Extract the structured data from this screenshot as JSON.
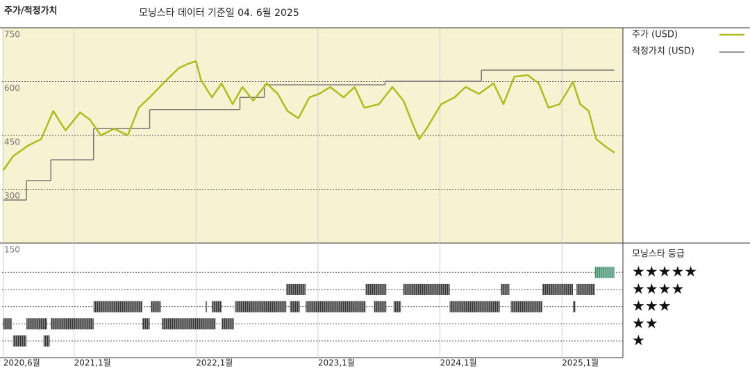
{
  "chart_data": {
    "type": "line",
    "title": "주가/적정가치",
    "subtitle": "모닝스타 데이터 기준일 04. 6월 2025",
    "xlim": [
      2020.41,
      2025.5
    ],
    "xticks": [
      {
        "value": 2020.42,
        "label": "2020,6월"
      },
      {
        "value": 2021,
        "label": "2021,1월"
      },
      {
        "value": 2022,
        "label": "2022,1월"
      },
      {
        "value": 2023,
        "label": "2023,1월"
      },
      {
        "value": 2024,
        "label": "2024,1월"
      },
      {
        "value": 2025,
        "label": "2025,1월"
      }
    ],
    "ylim": [
      150,
      750
    ],
    "yticks": [
      150,
      300,
      450,
      600,
      750
    ],
    "grid": true,
    "series": [
      {
        "name": "주가 (USD)",
        "color": "#b0bb1e",
        "style": "line",
        "x": [
          2020.42,
          2020.5,
          2020.62,
          2020.73,
          2020.83,
          2020.93,
          2021.05,
          2021.13,
          2021.22,
          2021.33,
          2021.44,
          2021.53,
          2021.62,
          2021.76,
          2021.86,
          2021.93,
          2022.0,
          2022.04,
          2022.13,
          2022.21,
          2022.3,
          2022.38,
          2022.47,
          2022.58,
          2022.67,
          2022.75,
          2022.84,
          2022.93,
          2023.01,
          2023.1,
          2023.21,
          2023.3,
          2023.38,
          2023.5,
          2023.61,
          2023.7,
          2023.78,
          2023.83,
          2023.89,
          2024.01,
          2024.12,
          2024.21,
          2024.32,
          2024.44,
          2024.52,
          2024.61,
          2024.72,
          2024.81,
          2024.89,
          2024.98,
          2025.09,
          2025.15,
          2025.22,
          2025.28,
          2025.35,
          2025.43
        ],
        "values": [
          353,
          392,
          421,
          440,
          518,
          464,
          514,
          494,
          450,
          469,
          450,
          527,
          556,
          605,
          638,
          649,
          657,
          605,
          556,
          595,
          537,
          585,
          547,
          595,
          566,
          518,
          498,
          556,
          566,
          585,
          556,
          585,
          527,
          537,
          585,
          547,
          479,
          440,
          469,
          537,
          556,
          585,
          566,
          595,
          537,
          614,
          618,
          595,
          527,
          537,
          599,
          537,
          518,
          440,
          421,
          402
        ]
      },
      {
        "name": "적정가치 (USD)",
        "color": "#777777",
        "style": "step",
        "x": [
          2020.42,
          2020.61,
          2020.81,
          2021.16,
          2021.62,
          2022.36,
          2022.56,
          2023.55,
          2024.34,
          2025.43
        ],
        "values": [
          270,
          324,
          382,
          469,
          522,
          556,
          591,
          601,
          632,
          632
        ]
      }
    ],
    "ratings": {
      "name": "모닝스타 등급",
      "labels": [
        "★",
        "★★",
        "★★★",
        "★★★★",
        "★★★★★"
      ],
      "colors": [
        "#333333",
        "#333333",
        "#333333",
        "#333333",
        "#3f8f6f"
      ],
      "periods": [
        {
          "start": 2020.5,
          "end": 2020.61,
          "stars": 1
        },
        {
          "start": 2020.75,
          "end": 2020.8,
          "stars": 1
        },
        {
          "start": 2020.42,
          "end": 2020.49,
          "stars": 2
        },
        {
          "start": 2020.61,
          "end": 2020.78,
          "stars": 2
        },
        {
          "start": 2020.81,
          "end": 2021.16,
          "stars": 2
        },
        {
          "start": 2021.56,
          "end": 2021.62,
          "stars": 2
        },
        {
          "start": 2021.72,
          "end": 2022.16,
          "stars": 2
        },
        {
          "start": 2022.21,
          "end": 2022.31,
          "stars": 2
        },
        {
          "start": 2021.16,
          "end": 2021.56,
          "stars": 3
        },
        {
          "start": 2021.63,
          "end": 2021.71,
          "stars": 3
        },
        {
          "start": 2022.08,
          "end": 2022.09,
          "stars": 3
        },
        {
          "start": 2022.13,
          "end": 2022.21,
          "stars": 3
        },
        {
          "start": 2022.32,
          "end": 2022.74,
          "stars": 3
        },
        {
          "start": 2022.77,
          "end": 2022.85,
          "stars": 3
        },
        {
          "start": 2022.9,
          "end": 2023.39,
          "stars": 3
        },
        {
          "start": 2023.46,
          "end": 2023.56,
          "stars": 3
        },
        {
          "start": 2023.62,
          "end": 2023.68,
          "stars": 3
        },
        {
          "start": 2024.08,
          "end": 2024.49,
          "stars": 3
        },
        {
          "start": 2024.58,
          "end": 2024.84,
          "stars": 3
        },
        {
          "start": 2025.09,
          "end": 2025.11,
          "stars": 3
        },
        {
          "start": 2022.74,
          "end": 2022.9,
          "stars": 4
        },
        {
          "start": 2023.39,
          "end": 2023.56,
          "stars": 4
        },
        {
          "start": 2023.7,
          "end": 2024.08,
          "stars": 4
        },
        {
          "start": 2024.5,
          "end": 2024.57,
          "stars": 4
        },
        {
          "start": 2024.84,
          "end": 2025.09,
          "stars": 4
        },
        {
          "start": 2025.12,
          "end": 2025.27,
          "stars": 4
        },
        {
          "start": 2025.27,
          "end": 2025.43,
          "stars": 5
        }
      ]
    }
  }
}
